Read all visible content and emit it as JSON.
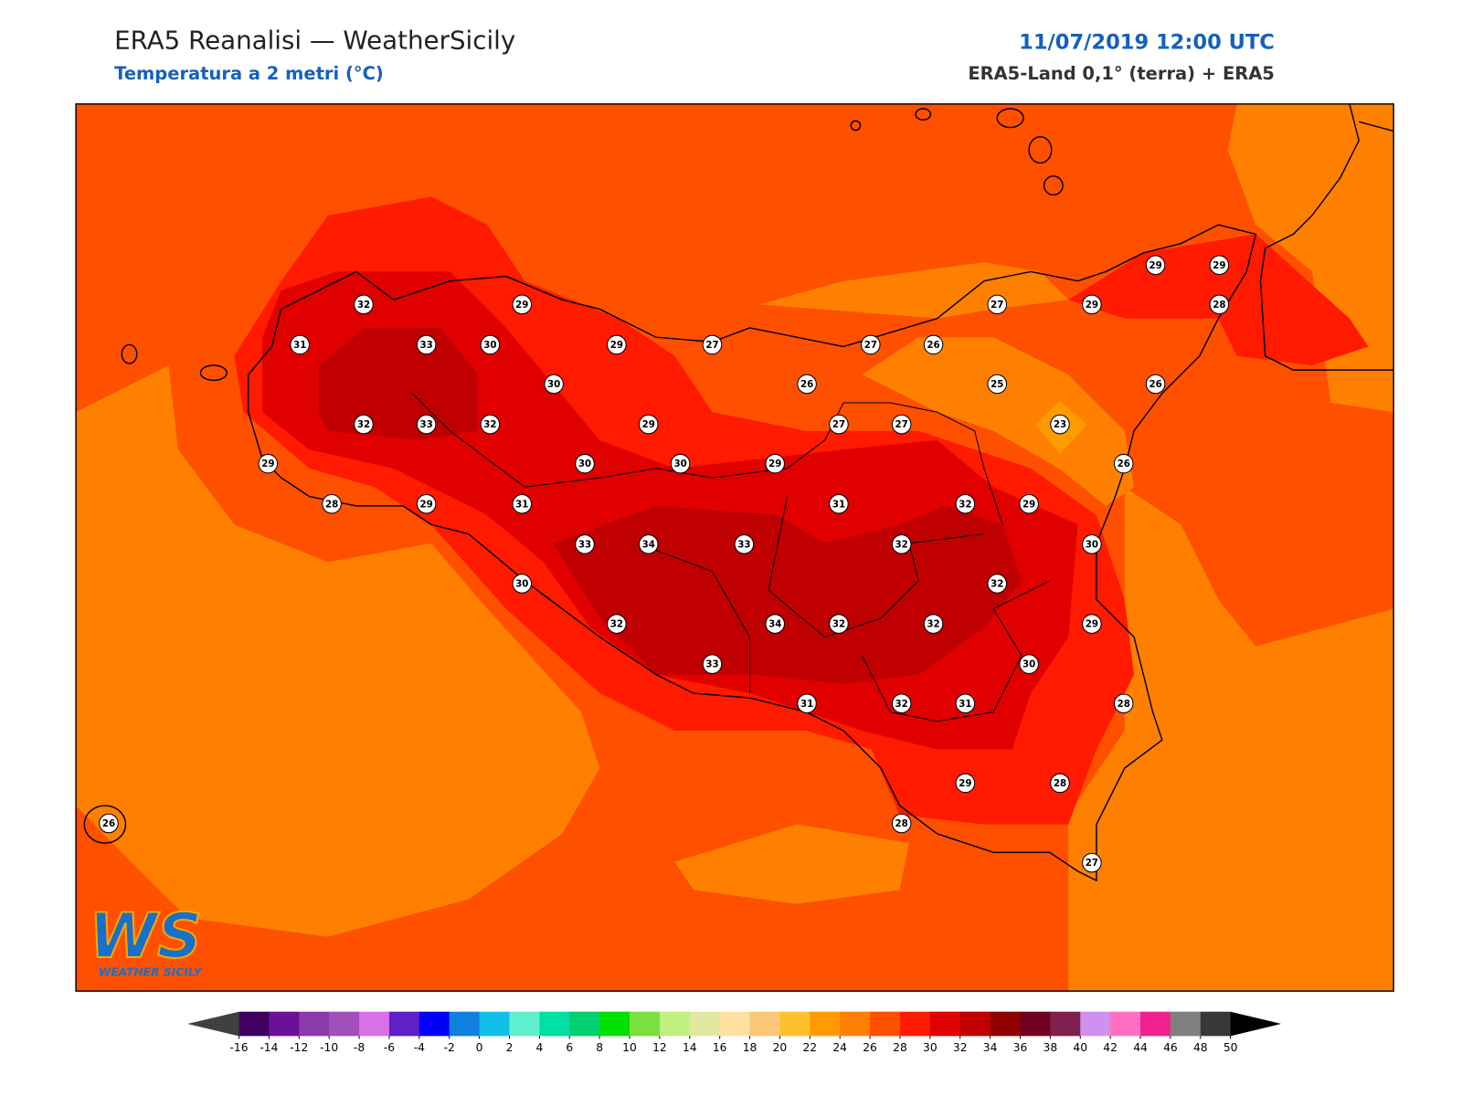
{
  "header": {
    "title": "ERA5 Reanalisi — WeatherSicily",
    "subtitle": "Temperatura a 2 metri (°C)",
    "datetime": "11/07/2019 12:00 UTC",
    "source": "ERA5-Land 0,1° (terra) + ERA5"
  },
  "map": {
    "stations": [
      29,
      29,
      27,
      29,
      28,
      32,
      29,
      31,
      33,
      30,
      29,
      27,
      27,
      26,
      30,
      26,
      25,
      26,
      32,
      33,
      32,
      29,
      27,
      27,
      23,
      29,
      30,
      30,
      29,
      26,
      28,
      29,
      31,
      31,
      32,
      29,
      33,
      34,
      33,
      32,
      30,
      30,
      32,
      32,
      34,
      32,
      32,
      29,
      33,
      30,
      31,
      32,
      31,
      28,
      29,
      28,
      28,
      26,
      27
    ]
  },
  "colorbar": {
    "ticks": [
      -16,
      -14,
      -12,
      -10,
      -8,
      -6,
      -4,
      -2,
      0,
      2,
      4,
      6,
      8,
      10,
      12,
      14,
      16,
      18,
      20,
      22,
      24,
      26,
      28,
      30,
      32,
      34,
      36,
      38,
      40,
      42,
      44,
      46,
      48,
      50
    ],
    "colors": [
      "#3f0060",
      "#6a1099",
      "#8a3aaa",
      "#a050b8",
      "#d870e8",
      "#6020c8",
      "#0000ff",
      "#1080e0",
      "#10c0e8",
      "#60f0d0",
      "#00e0a0",
      "#00d070",
      "#00e000",
      "#7ae040",
      "#c0f080",
      "#e0e8a0",
      "#ffe0a0",
      "#fcc878",
      "#ffc030",
      "#ff9a00",
      "#ff8000",
      "#ff5000",
      "#ff1a00",
      "#e00000",
      "#c00000",
      "#900000",
      "#700020",
      "#802050",
      "#d090f0",
      "#ff70c0",
      "#f02090",
      "#808080",
      "#383838"
    ],
    "under_color": "#404040",
    "over_color": "#000000"
  },
  "logo": {
    "mark": "WS",
    "text": "WEATHER SICILY"
  }
}
